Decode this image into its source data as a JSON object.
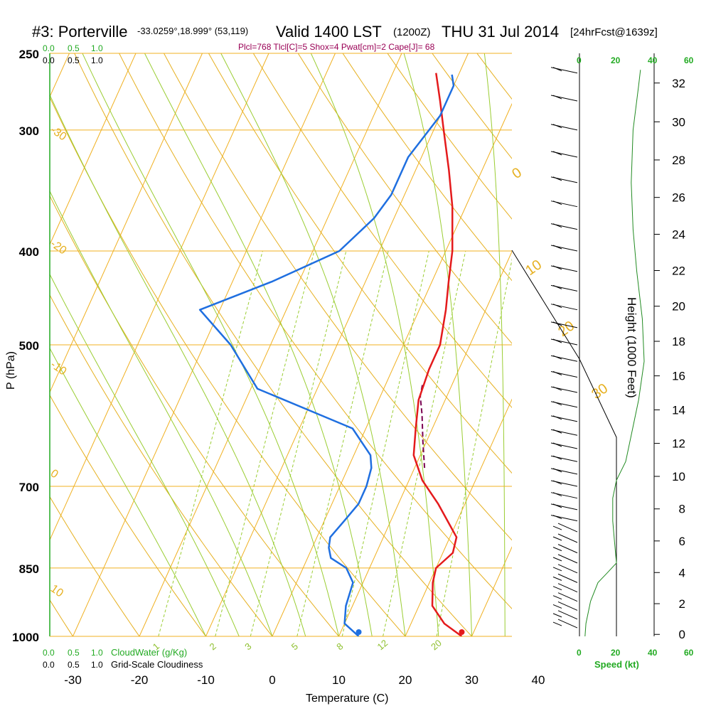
{
  "header": {
    "station": "#3: Porterville",
    "coords": "-33.0259°,18.999° (53,119)",
    "valid": "Valid 1400 LST",
    "utc": "(1200Z)",
    "date": "THU 31 Jul 2014",
    "forecast": "[24hrFcst@1639z]",
    "stats": "Plcl=768 Tlcl[C]=5 Shox=4 Pwat[cm]=2 Cape[J]= 68"
  },
  "colors": {
    "temperature": "#e41a1c",
    "dewpoint": "#1f6fe0",
    "parcel": "#7a0050",
    "isobar": "#f0b020",
    "isotherm": "#f0b020",
    "dry_adiabat": "#e6b020",
    "moist_adiabat": "#9acd32",
    "mixing_ratio": "#9acd32",
    "cloud_scale": "#22aa22",
    "wind_speed": "#228b22"
  },
  "chart_data": {
    "type": "line",
    "title": "#3: Porterville -33.0259°,18.999° (53,119) Valid 1400 LST (1200Z) THU 31 Jul 2014 [24hrFcst@1639z]",
    "xlabel": "Temperature (C)",
    "ylabel": "P (hPa)",
    "xlim": [
      -35,
      40
    ],
    "ylim": [
      1000,
      250
    ],
    "x_ticks": [
      -30,
      -20,
      -10,
      0,
      10,
      20,
      30,
      40
    ],
    "pressure_ticks": [
      250,
      300,
      400,
      500,
      700,
      850,
      1000
    ],
    "pressure_scale": "log",
    "height_axis": {
      "label": "Height (1000 Feet)",
      "ticks": [
        0,
        2,
        4,
        6,
        8,
        10,
        12,
        14,
        16,
        18,
        20,
        22,
        24,
        26,
        28,
        30,
        32
      ]
    },
    "cloud_scales": {
      "top_green": [
        "0.0",
        "0.5",
        "1.0"
      ],
      "top_black": [
        "0.0",
        "0.5",
        "1.0"
      ],
      "bottom_green": [
        "0.0",
        "0.5",
        "1.0"
      ],
      "bottom_black": [
        "0.0",
        "0.5",
        "1.0"
      ],
      "cloudwater_label": "CloudWater (g/Kg)",
      "cloudiness_label": "Grid-Scale Cloudiness"
    },
    "wind_speed_scale": {
      "label": "Speed (kt)",
      "ticks": [
        "0",
        "20",
        "40",
        "60"
      ]
    },
    "dry_adiabat_labels": [
      "-30",
      "-20",
      "-10",
      "0",
      "10",
      "20",
      "30",
      "0",
      "10",
      "20",
      "30"
    ],
    "mixing_ratio_labels": [
      "1",
      "2",
      "3",
      "5",
      "8",
      "12",
      "20"
    ],
    "series": [
      {
        "name": "Temperature",
        "points": [
          [
            28.5,
            1000
          ],
          [
            25,
            970
          ],
          [
            22,
            930
          ],
          [
            20.5,
            880
          ],
          [
            20,
            850
          ],
          [
            21.5,
            820
          ],
          [
            21,
            790
          ],
          [
            16,
            730
          ],
          [
            12,
            690
          ],
          [
            9,
            650
          ],
          [
            7.5,
            610
          ],
          [
            6,
            570
          ],
          [
            5.5,
            530
          ],
          [
            5.5,
            500
          ],
          [
            4,
            460
          ],
          [
            2.5,
            430
          ],
          [
            1,
            400
          ],
          [
            -2,
            360
          ],
          [
            -5,
            330
          ],
          [
            -8.5,
            300
          ],
          [
            -11,
            280
          ],
          [
            -13.5,
            262
          ]
        ]
      },
      {
        "name": "Dewpoint",
        "points": [
          [
            13,
            1000
          ],
          [
            10,
            970
          ],
          [
            9,
            930
          ],
          [
            8.5,
            880
          ],
          [
            6.5,
            850
          ],
          [
            3.5,
            830
          ],
          [
            2.5,
            810
          ],
          [
            2,
            790
          ],
          [
            3,
            760
          ],
          [
            4,
            730
          ],
          [
            4,
            700
          ],
          [
            3.5,
            670
          ],
          [
            2.5,
            650
          ],
          [
            -2,
            610
          ],
          [
            -8,
            590
          ],
          [
            -19,
            555
          ],
          [
            -26,
            500
          ],
          [
            -33,
            460
          ],
          [
            -24,
            430
          ],
          [
            -16,
            400
          ],
          [
            -13,
            370
          ],
          [
            -12,
            350
          ],
          [
            -12,
            320
          ],
          [
            -10,
            290
          ],
          [
            -10,
            270
          ],
          [
            -11,
            263
          ]
        ]
      },
      {
        "name": "Parcel",
        "points": [
          [
            11.5,
            670
          ],
          [
            9.5,
            630
          ],
          [
            7.5,
            590
          ],
          [
            6,
            565
          ],
          [
            5.5,
            548
          ]
        ]
      }
    ],
    "wind_speed_profile": [
      [
        3,
        1000
      ],
      [
        3.5,
        970
      ],
      [
        6,
        920
      ],
      [
        10,
        880
      ],
      [
        15,
        860
      ],
      [
        20,
        840
      ],
      [
        19,
        800
      ],
      [
        18,
        760
      ],
      [
        18,
        720
      ],
      [
        20,
        690
      ],
      [
        25,
        660
      ],
      [
        28,
        620
      ],
      [
        32,
        570
      ],
      [
        35,
        520
      ],
      [
        34,
        470
      ],
      [
        31,
        420
      ],
      [
        29,
        380
      ],
      [
        28,
        340
      ],
      [
        29,
        300
      ],
      [
        32,
        270
      ],
      [
        33,
        260
      ]
    ],
    "wind_levels_hpa": [
      262,
      280,
      300,
      320,
      340,
      360,
      380,
      400,
      420,
      440,
      460,
      480,
      500,
      520,
      540,
      560,
      580,
      600,
      620,
      640,
      660,
      680,
      700,
      720,
      740,
      760,
      780,
      800,
      820,
      840,
      860,
      880,
      900,
      920,
      940,
      960,
      980
    ]
  }
}
